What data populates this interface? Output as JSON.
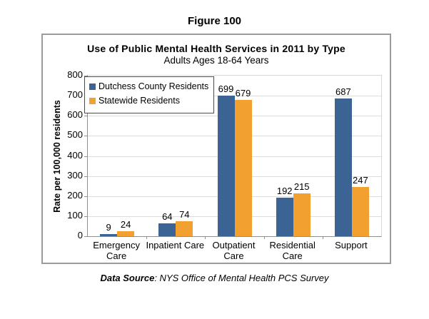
{
  "figure_title": "Figure 100",
  "footer": {
    "source_label": "Data Source",
    "source_text": ": NYS Office of Mental Health PCS Survey"
  },
  "chart_data": {
    "type": "bar",
    "title": "Use of Public Mental Health Services in 2011 by Type",
    "subtitle": "Adults Ages 18-64 Years",
    "ylabel": "Rate per 100,000 residents",
    "xlabel": "",
    "ylim": [
      0,
      800
    ],
    "ytick_step": 100,
    "grid": true,
    "legend_position": "top-left-inside",
    "categories": [
      "Emergency\nCare",
      "Inpatient Care",
      "Outpatient\nCare",
      "Residential\nCare",
      "Support"
    ],
    "series": [
      {
        "name": "Dutchess County Residents",
        "color": "#3B6394",
        "values": [
          9,
          64,
          699,
          192,
          687
        ]
      },
      {
        "name": "Statewide Residents",
        "color": "#F2A02F",
        "values": [
          24,
          74,
          679,
          215,
          247
        ]
      }
    ],
    "colors": {
      "gridline": "#dcdcdc",
      "axis": "#8f8f8f",
      "frame_border": "#9b9b9b"
    }
  }
}
